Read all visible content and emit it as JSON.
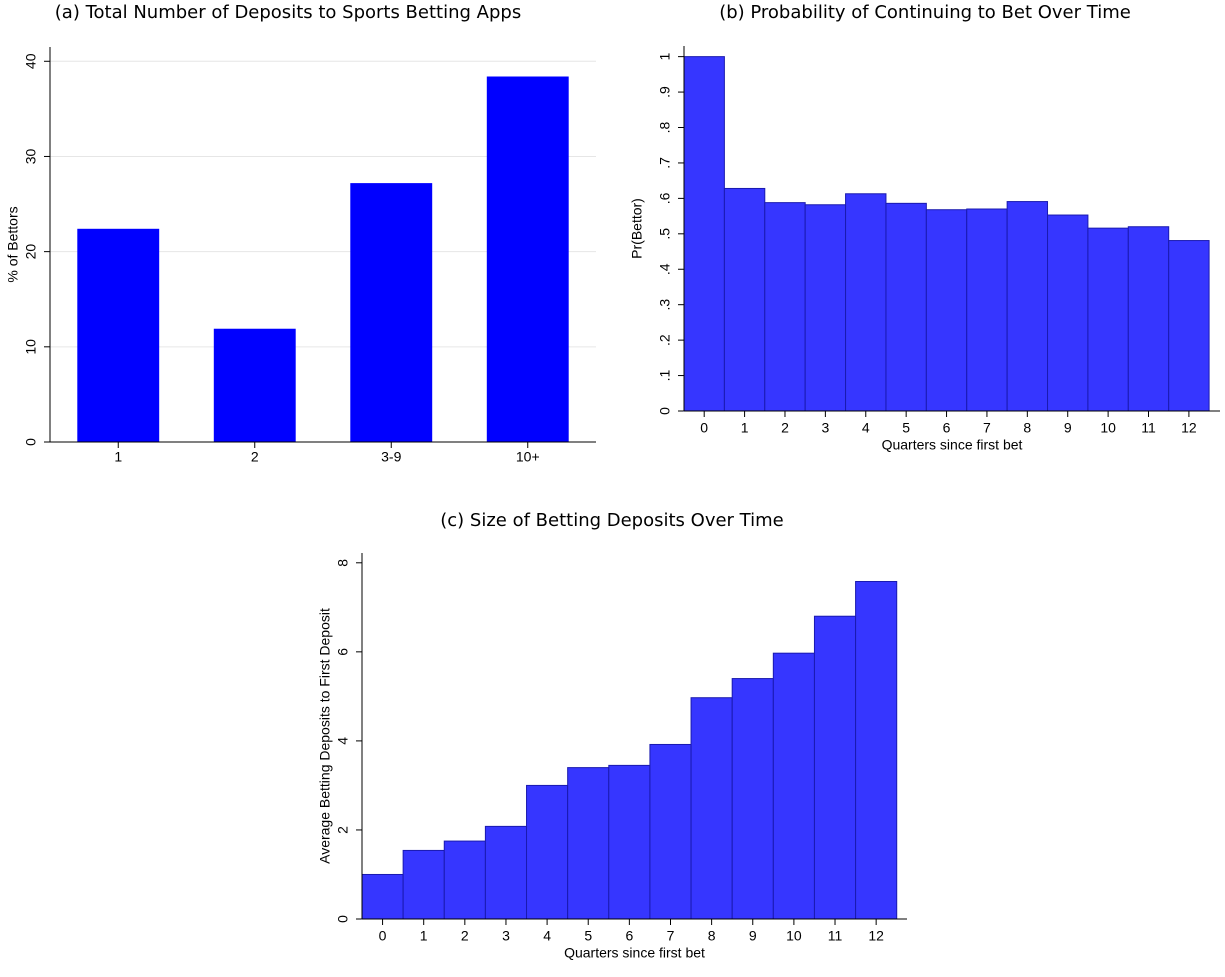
{
  "chart_data": [
    {
      "type": "bar",
      "title": "(a) Total Number of Deposits to Sports Betting Apps",
      "ylabel": "% of Bettors",
      "categories": [
        "1",
        "2",
        "3-9",
        "10+"
      ],
      "values": [
        22.4,
        11.9,
        27.2,
        38.4
      ],
      "color": "#0000ff",
      "ylim": [
        0,
        41.5
      ],
      "yticks": [
        0,
        10,
        20,
        30,
        40
      ],
      "grid": true
    },
    {
      "type": "histbar",
      "title": "(b) Probability of Continuing to Bet Over Time",
      "ylabel": "Pr(Bettor)",
      "xlabel": "Quarters since first bet",
      "x": [
        0,
        1,
        2,
        3,
        4,
        5,
        6,
        7,
        8,
        9,
        10,
        11,
        12
      ],
      "values": [
        1,
        0.628,
        0.588,
        0.582,
        0.613,
        0.586,
        0.568,
        0.57,
        0.591,
        0.553,
        0.516,
        0.52,
        0.481
      ],
      "color": "#3636ff",
      "edgecolor": "#1a1ab0",
      "xlim": [
        -0.5,
        12.77
      ],
      "xticks": [
        0,
        1,
        2,
        3,
        4,
        5,
        6,
        7,
        8,
        9,
        10,
        11,
        12
      ],
      "ylim": [
        0,
        1.03
      ],
      "yticks": [
        0,
        {
          "value": 0.1,
          "label": ".1"
        },
        {
          "value": 0.2,
          "label": ".2"
        },
        {
          "value": 0.3,
          "label": ".3"
        },
        {
          "value": 0.4,
          "label": ".4"
        },
        {
          "value": 0.5,
          "label": ".5"
        },
        {
          "value": 0.6,
          "label": ".6"
        },
        {
          "value": 0.7,
          "label": ".7"
        },
        {
          "value": 0.8,
          "label": ".8"
        },
        {
          "value": 0.9,
          "label": ".9"
        },
        1
      ],
      "grid": false
    },
    {
      "type": "histbar",
      "title": "(c) Size of Betting Deposits Over Time",
      "ylabel": "Average Betting Deposits to First Deposit",
      "xlabel": "Quarters since first bet",
      "x": [
        0,
        1,
        2,
        3,
        4,
        5,
        6,
        7,
        8,
        9,
        10,
        11,
        12
      ],
      "values": [
        1.0,
        1.54,
        1.75,
        2.08,
        3.0,
        3.4,
        3.45,
        3.92,
        4.97,
        5.4,
        5.97,
        6.8,
        7.58
      ],
      "color": "#3636ff",
      "edgecolor": "#1a1ab0",
      "xlim": [
        -0.5,
        12.75
      ],
      "xticks": [
        0,
        1,
        2,
        3,
        4,
        5,
        6,
        7,
        8,
        9,
        10,
        11,
        12
      ],
      "ylim": [
        0,
        8.22
      ],
      "yticks": [
        0,
        2,
        4,
        6,
        8
      ],
      "grid": false
    }
  ]
}
